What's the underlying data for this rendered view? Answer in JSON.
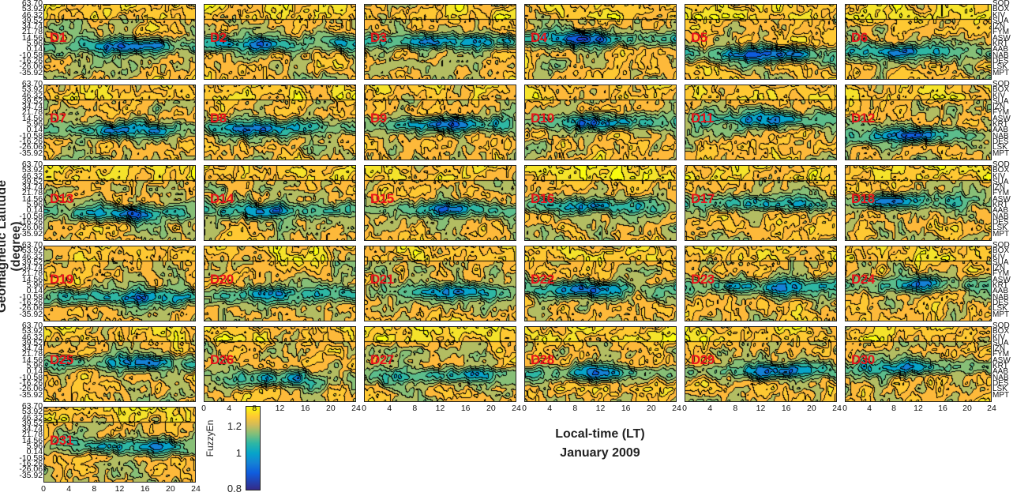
{
  "chart_data": {
    "type": "heatmap",
    "subtype": "filled-contour small multiples",
    "title": "January 2009",
    "xlabel": "Local-time (LT)",
    "ylabel": "Geomagnetic Latitude (degree)",
    "panels": [
      "D1",
      "D2",
      "D3",
      "D4",
      "D5",
      "D6",
      "D7",
      "D8",
      "D9",
      "D10",
      "D11",
      "D12",
      "D13",
      "D14",
      "D15",
      "D16",
      "D17",
      "D18",
      "D19",
      "D20",
      "D21",
      "D22",
      "D23",
      "D24",
      "D25",
      "D26",
      "D27",
      "D28",
      "D29",
      "D30",
      "D31"
    ],
    "xlim": [
      0,
      24
    ],
    "xticks": [
      "0",
      "4",
      "8",
      "12",
      "16",
      "20",
      "24"
    ],
    "ylim": [
      -35.92,
      63.7
    ],
    "yticks": [
      "63.70",
      "53.92",
      "46.32",
      "39.52",
      "34.74",
      "21.78",
      "14.56",
      "5.96",
      "0.14",
      "-10.58",
      "-16.26",
      "-26.06",
      "-35.92"
    ],
    "stations": [
      "SOD",
      "BOX",
      "KIV",
      "SUA",
      "IZN",
      "FYM",
      "ASW",
      "KRT",
      "AAB",
      "NAB",
      "DES",
      "LSK",
      "MPT"
    ],
    "colorbar": {
      "label": "FuzzyEn",
      "ticks": [
        "1.2",
        "1",
        "0.8"
      ],
      "range": [
        0.8,
        1.3
      ],
      "colormap": "parula"
    },
    "colors": {
      "panel_label": "#e8141b",
      "low": "#352a87",
      "mid": "#2eb7a4",
      "high": "#fec832",
      "max": "#f9fb0e"
    }
  }
}
